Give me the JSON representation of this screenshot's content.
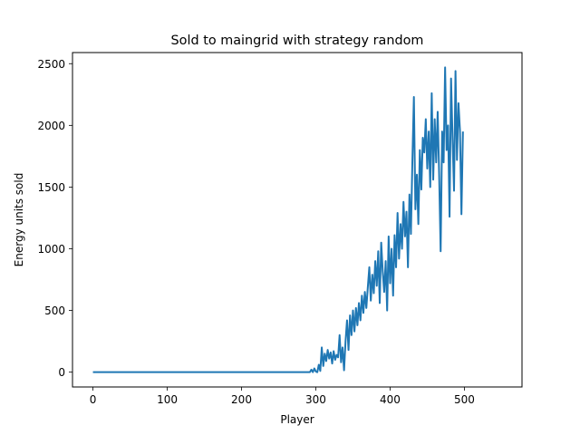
{
  "chart_data": {
    "type": "line",
    "title": "Sold to maingrid with strategy random",
    "xlabel": "Player",
    "ylabel": "Energy units sold",
    "xlim": [
      -27.5,
      577.5
    ],
    "ylim": [
      -120,
      2590
    ],
    "xticks": [
      0,
      100,
      200,
      300,
      400,
      500
    ],
    "yticks": [
      0,
      500,
      1000,
      1500,
      2000,
      2500
    ],
    "grid": false,
    "series": [
      {
        "color": "#1f77b4",
        "points": [
          [
            0,
            0
          ],
          [
            50,
            0
          ],
          [
            100,
            0
          ],
          [
            150,
            0
          ],
          [
            200,
            0
          ],
          [
            250,
            0
          ],
          [
            290,
            0
          ],
          [
            292,
            0
          ],
          [
            294,
            20
          ],
          [
            296,
            0
          ],
          [
            298,
            30
          ],
          [
            300,
            5
          ],
          [
            302,
            0
          ],
          [
            304,
            60
          ],
          [
            306,
            10
          ],
          [
            308,
            200
          ],
          [
            310,
            50
          ],
          [
            312,
            150
          ],
          [
            314,
            90
          ],
          [
            316,
            180
          ],
          [
            318,
            110
          ],
          [
            320,
            160
          ],
          [
            322,
            70
          ],
          [
            324,
            170
          ],
          [
            326,
            100
          ],
          [
            328,
            140
          ],
          [
            330,
            120
          ],
          [
            332,
            300
          ],
          [
            334,
            80
          ],
          [
            336,
            200
          ],
          [
            338,
            15
          ],
          [
            340,
            250
          ],
          [
            342,
            420
          ],
          [
            344,
            180
          ],
          [
            346,
            460
          ],
          [
            348,
            300
          ],
          [
            350,
            500
          ],
          [
            352,
            330
          ],
          [
            354,
            520
          ],
          [
            356,
            380
          ],
          [
            358,
            560
          ],
          [
            360,
            420
          ],
          [
            362,
            620
          ],
          [
            364,
            480
          ],
          [
            366,
            650
          ],
          [
            368,
            520
          ],
          [
            370,
            690
          ],
          [
            372,
            850
          ],
          [
            374,
            580
          ],
          [
            376,
            790
          ],
          [
            378,
            640
          ],
          [
            380,
            900
          ],
          [
            382,
            700
          ],
          [
            384,
            980
          ],
          [
            386,
            560
          ],
          [
            388,
            1050
          ],
          [
            390,
            820
          ],
          [
            392,
            650
          ],
          [
            394,
            900
          ],
          [
            396,
            500
          ],
          [
            398,
            1100
          ],
          [
            400,
            720
          ],
          [
            402,
            1000
          ],
          [
            404,
            620
          ],
          [
            406,
            1110
          ],
          [
            408,
            850
          ],
          [
            410,
            1290
          ],
          [
            412,
            920
          ],
          [
            414,
            1200
          ],
          [
            416,
            1000
          ],
          [
            418,
            1380
          ],
          [
            420,
            1100
          ],
          [
            422,
            1300
          ],
          [
            424,
            850
          ],
          [
            426,
            1440
          ],
          [
            428,
            1120
          ],
          [
            430,
            1720
          ],
          [
            432,
            2230
          ],
          [
            434,
            1320
          ],
          [
            436,
            1600
          ],
          [
            438,
            1200
          ],
          [
            440,
            1800
          ],
          [
            442,
            1480
          ],
          [
            444,
            1900
          ],
          [
            446,
            1780
          ],
          [
            448,
            2050
          ],
          [
            450,
            1650
          ],
          [
            452,
            1950
          ],
          [
            454,
            1500
          ],
          [
            456,
            2260
          ],
          [
            458,
            1560
          ],
          [
            460,
            2050
          ],
          [
            462,
            1700
          ],
          [
            464,
            2110
          ],
          [
            466,
            1600
          ],
          [
            468,
            980
          ],
          [
            470,
            1950
          ],
          [
            472,
            1700
          ],
          [
            474,
            2470
          ],
          [
            476,
            1800
          ],
          [
            478,
            2000
          ],
          [
            480,
            1260
          ],
          [
            482,
            2380
          ],
          [
            484,
            1900
          ],
          [
            486,
            1470
          ],
          [
            488,
            2440
          ],
          [
            490,
            1720
          ],
          [
            492,
            2180
          ],
          [
            494,
            1960
          ],
          [
            496,
            1280
          ],
          [
            498,
            1950
          ]
        ]
      }
    ]
  }
}
